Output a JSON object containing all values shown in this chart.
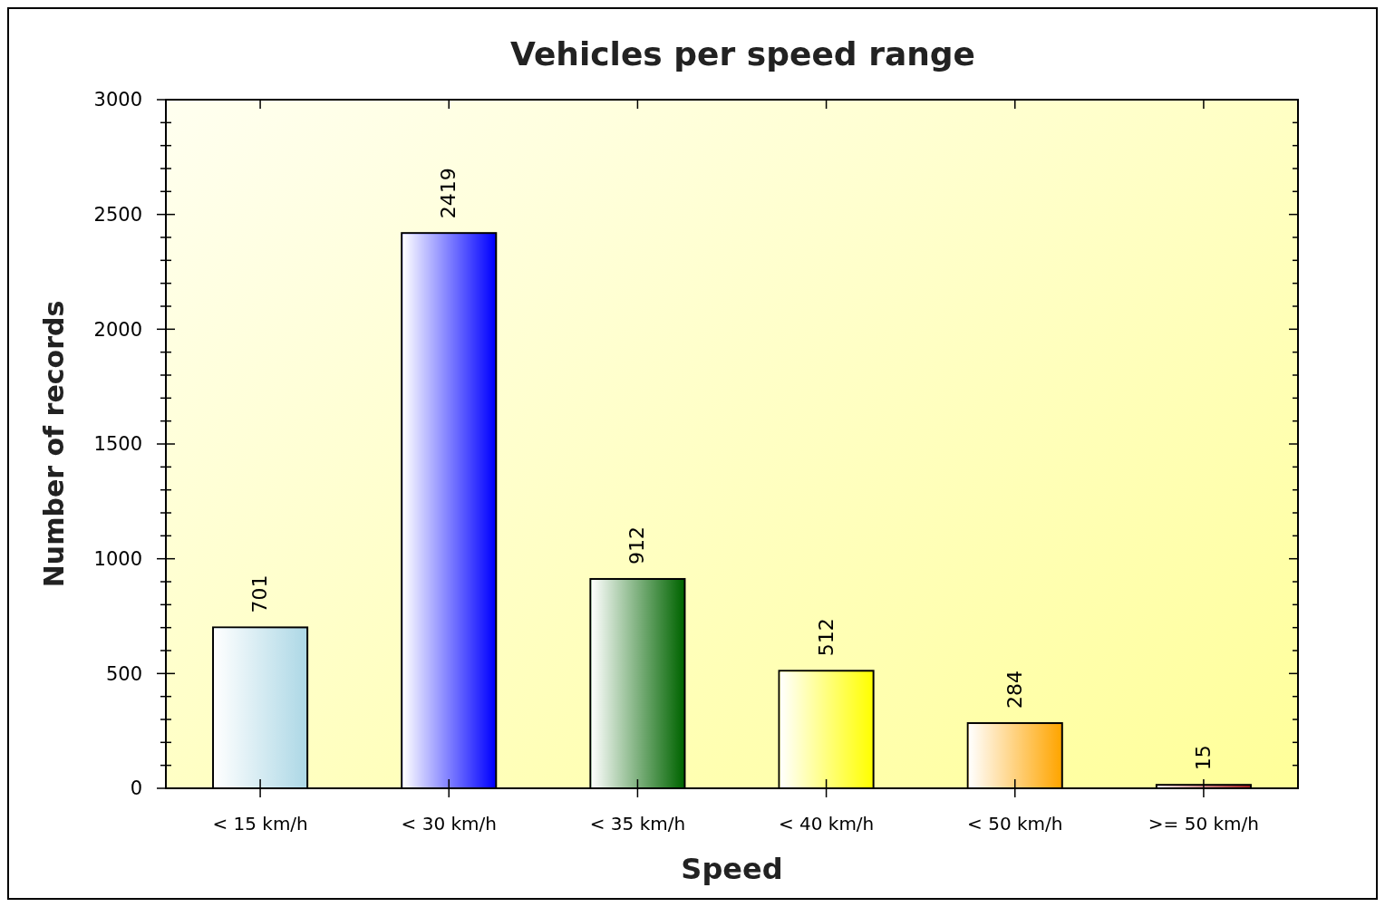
{
  "chart_data": {
    "type": "bar",
    "title": "Vehicles per speed range",
    "xlabel": "Speed",
    "ylabel": "Number of records",
    "categories": [
      "< 15 km/h",
      "< 30 km/h",
      "< 35 km/h",
      "< 40 km/h",
      "< 50 km/h",
      ">= 50 km/h"
    ],
    "values": [
      701,
      2419,
      912,
      512,
      284,
      15
    ],
    "colors": [
      "#add8e6",
      "#0000ff",
      "#006400",
      "#ffff00",
      "#ffa500",
      "#b22222"
    ],
    "ylim": [
      0,
      3000
    ],
    "yticks": [
      0,
      {
        "value": 100,
        "label": null
      },
      {
        "value": 200,
        "label": null
      },
      {
        "value": 300,
        "label": null
      },
      {
        "value": 400,
        "label": null
      },
      500,
      {
        "value": 600,
        "label": null
      },
      {
        "value": 700,
        "label": null
      },
      {
        "value": 800,
        "label": null
      },
      {
        "value": 900,
        "label": null
      },
      1000,
      {
        "value": 1100,
        "label": null
      },
      {
        "value": 1200,
        "label": null
      },
      {
        "value": 1300,
        "label": null
      },
      {
        "value": 1400,
        "label": null
      },
      1500,
      {
        "value": 1600,
        "label": null
      },
      {
        "value": 1700,
        "label": null
      },
      {
        "value": 1800,
        "label": null
      },
      {
        "value": 1900,
        "label": null
      },
      2000,
      {
        "value": 2100,
        "label": null
      },
      {
        "value": 2200,
        "label": null
      },
      {
        "value": 2300,
        "label": null
      },
      {
        "value": 2400,
        "label": null
      },
      2500,
      {
        "value": 2600,
        "label": null
      },
      {
        "value": 2700,
        "label": null
      },
      {
        "value": 2800,
        "label": null
      },
      {
        "value": 2900,
        "label": null
      },
      3000
    ],
    "data_labels": true
  }
}
